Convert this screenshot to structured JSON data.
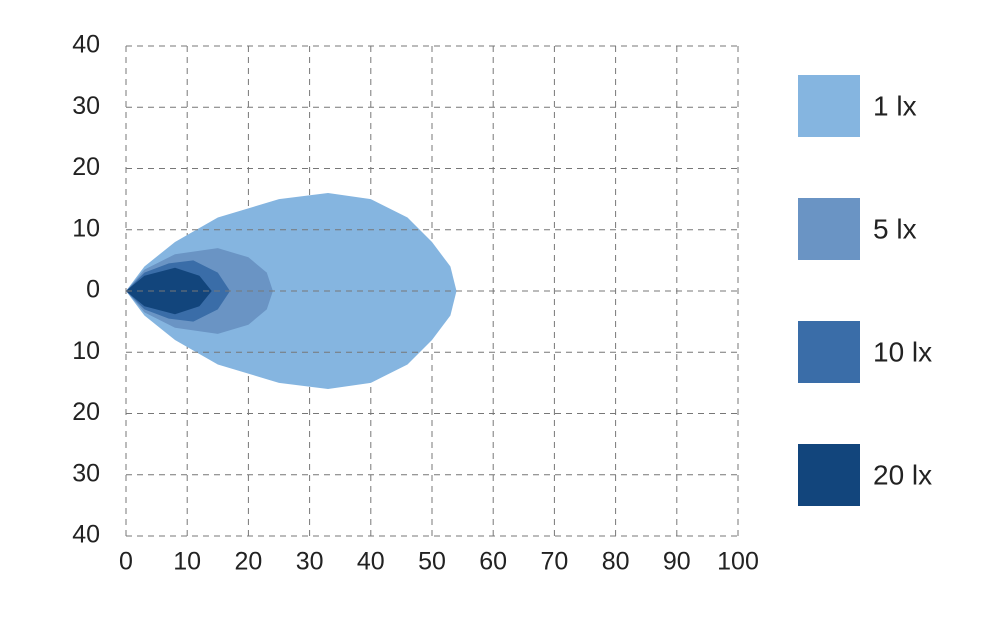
{
  "chart_data": {
    "type": "isolux",
    "xlim": [
      0,
      100
    ],
    "xticks": [
      0,
      10,
      20,
      30,
      40,
      50,
      60,
      70,
      80,
      90,
      100
    ],
    "ylim": [
      -40,
      40
    ],
    "yticks": [
      {
        "value": 40,
        "label": "40"
      },
      {
        "value": 30,
        "label": "30"
      },
      {
        "value": 20,
        "label": "20"
      },
      {
        "value": 10,
        "label": "10"
      },
      0,
      {
        "value": -10,
        "label": "10"
      },
      {
        "value": -20,
        "label": "20"
      },
      {
        "value": -30,
        "label": "30"
      },
      {
        "value": -40,
        "label": "40"
      }
    ],
    "grid": true,
    "series": [
      {
        "name": "1 lx",
        "color": "#85b5e0",
        "x": [
          0,
          3,
          8,
          15,
          25,
          33,
          40,
          46,
          50,
          53,
          54,
          53,
          50,
          46,
          40,
          33,
          25,
          15,
          8,
          3
        ],
        "y": [
          0,
          4,
          8,
          12,
          15,
          16,
          15,
          12,
          8,
          4,
          0,
          -4,
          -8,
          -12,
          -15,
          -16,
          -15,
          -12,
          -8,
          -4
        ]
      },
      {
        "name": "5 lx",
        "color": "#6a94c4",
        "x": [
          0,
          3,
          8,
          15,
          20,
          23,
          24,
          23,
          20,
          15,
          8,
          3
        ],
        "y": [
          0,
          3.5,
          6,
          7,
          5.5,
          3,
          0,
          -3,
          -5.5,
          -7,
          -6,
          -3.5
        ]
      },
      {
        "name": "10 lx",
        "color": "#3a6da8",
        "x": [
          0,
          3,
          7,
          11,
          15,
          17,
          15,
          11,
          7,
          3
        ],
        "y": [
          0,
          3,
          4.5,
          5,
          3,
          0,
          -3,
          -5,
          -4.5,
          -3
        ]
      },
      {
        "name": "20 lx",
        "color": "#12457c",
        "x": [
          0,
          3,
          8,
          12,
          14,
          12,
          8,
          3
        ],
        "y": [
          0,
          2.5,
          3.8,
          2.5,
          0,
          -2.5,
          -3.8,
          -2.5
        ]
      }
    ]
  }
}
